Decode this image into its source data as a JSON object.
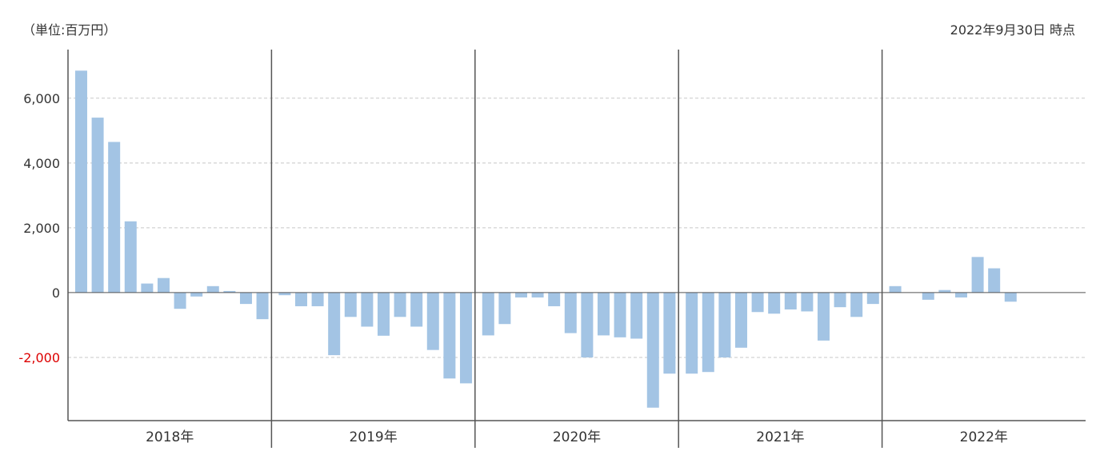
{
  "header": {
    "unit": "（単位:百万円）",
    "as_of": "2022年9月30日 時点"
  },
  "colors": {
    "bar": "#a3c4e4",
    "grid": "#c8c8c8",
    "axis": "#555555",
    "negative_tick": "#dd0000"
  },
  "chart_data": {
    "type": "bar",
    "ylim": [
      -3950,
      7500
    ],
    "yticks": [
      -2000,
      0,
      2000,
      4000,
      6000
    ],
    "ytick_labels": [
      "-2,000",
      "0",
      "2,000",
      "4,000",
      "6,000"
    ],
    "grid": true,
    "years": [
      {
        "label": "2018年",
        "values": [
          6850,
          5400,
          4650,
          2200,
          280,
          450,
          -500,
          -120,
          200,
          50,
          -350,
          -820
        ]
      },
      {
        "label": "2019年",
        "values": [
          -80,
          -420,
          -420,
          -1930,
          -750,
          -1050,
          -1330,
          -750,
          -1050,
          -1770,
          -2650,
          -2800
        ]
      },
      {
        "label": "2020年",
        "values": [
          -1320,
          -970,
          -150,
          -150,
          -420,
          -1250,
          -2000,
          -1320,
          -1380,
          -1420,
          -3550,
          -2500
        ]
      },
      {
        "label": "2021年",
        "values": [
          -2500,
          -2450,
          -2000,
          -1700,
          -600,
          -650,
          -520,
          -580,
          -1480,
          -450,
          -750,
          -350
        ]
      },
      {
        "label": "2022年",
        "values": [
          200,
          null,
          -220,
          80,
          -150,
          1100,
          750,
          -280,
          null,
          null,
          null,
          null
        ]
      }
    ]
  }
}
